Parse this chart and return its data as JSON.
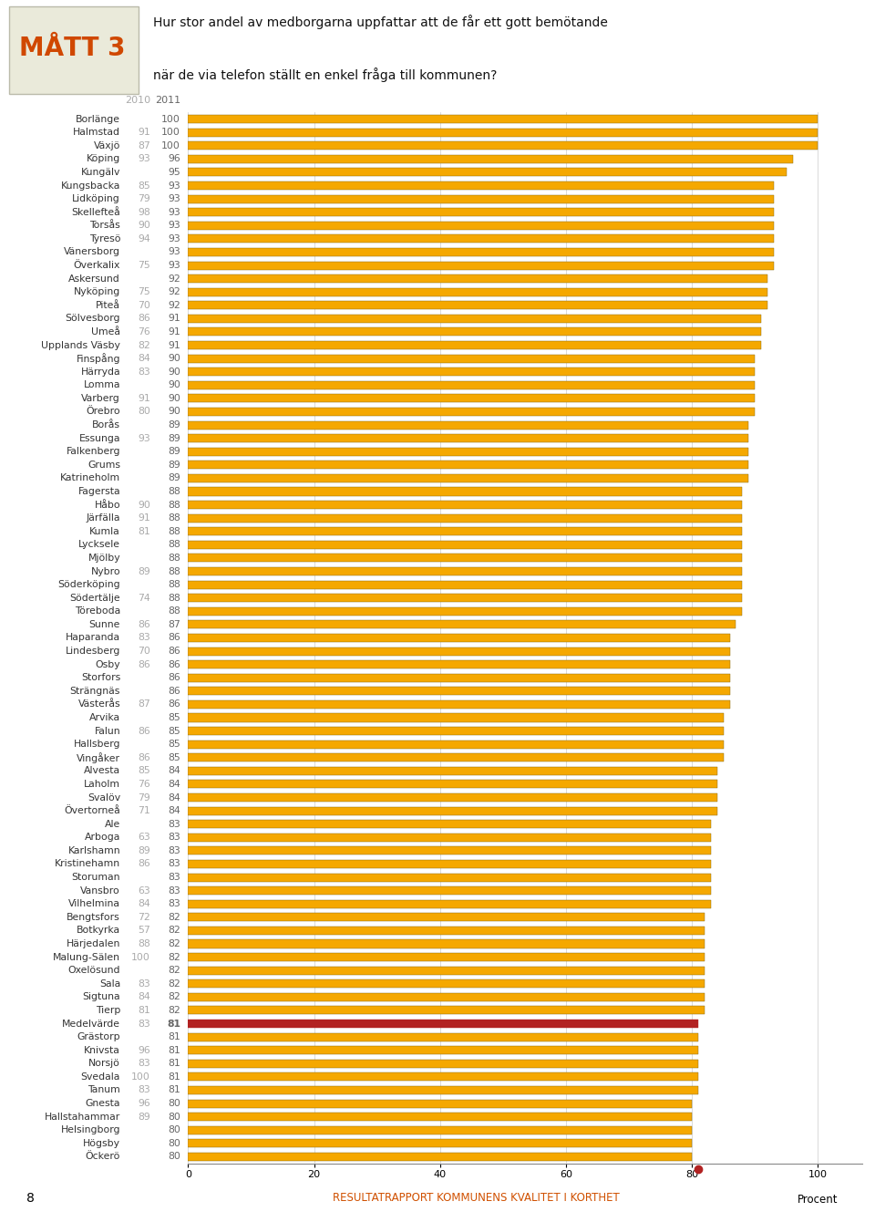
{
  "title_label": "MÅTT 3",
  "question_line1": "Hur stor andel av medborgarna uppfattar att de får ett gott bemötande",
  "question_line2": "när de via telefon ställt en enkel fråga till kommunen?",
  "year_label_2010": "2010",
  "year_label_2011": "2011",
  "xlabel": "Procent",
  "bar_color": "#F5A800",
  "medelvarde_color": "#B22222",
  "municipalities": [
    {
      "name": "Borlänge",
      "v2010": null,
      "v2011": 100
    },
    {
      "name": "Halmstad",
      "v2010": 91,
      "v2011": 100
    },
    {
      "name": "Växjö",
      "v2010": 87,
      "v2011": 100
    },
    {
      "name": "Köping",
      "v2010": 93,
      "v2011": 96
    },
    {
      "name": "Kungälv",
      "v2010": null,
      "v2011": 95
    },
    {
      "name": "Kungsbacka",
      "v2010": 85,
      "v2011": 93
    },
    {
      "name": "Lidköping",
      "v2010": 79,
      "v2011": 93
    },
    {
      "name": "Skellefteå",
      "v2010": 98,
      "v2011": 93
    },
    {
      "name": "Torsås",
      "v2010": 90,
      "v2011": 93
    },
    {
      "name": "Tyresö",
      "v2010": 94,
      "v2011": 93
    },
    {
      "name": "Vänersborg",
      "v2010": null,
      "v2011": 93
    },
    {
      "name": "Överkalix",
      "v2010": 75,
      "v2011": 93
    },
    {
      "name": "Askersund",
      "v2010": null,
      "v2011": 92
    },
    {
      "name": "Nyköping",
      "v2010": 75,
      "v2011": 92
    },
    {
      "name": "Piteå",
      "v2010": 70,
      "v2011": 92
    },
    {
      "name": "Sölvesborg",
      "v2010": 86,
      "v2011": 91
    },
    {
      "name": "Umeå",
      "v2010": 76,
      "v2011": 91
    },
    {
      "name": "Upplands Väsby",
      "v2010": 82,
      "v2011": 91
    },
    {
      "name": "Finspång",
      "v2010": 84,
      "v2011": 90
    },
    {
      "name": "Härryda",
      "v2010": 83,
      "v2011": 90
    },
    {
      "name": "Lomma",
      "v2010": null,
      "v2011": 90
    },
    {
      "name": "Varberg",
      "v2010": 91,
      "v2011": 90
    },
    {
      "name": "Örebro",
      "v2010": 80,
      "v2011": 90
    },
    {
      "name": "Borås",
      "v2010": null,
      "v2011": 89
    },
    {
      "name": "Essunga",
      "v2010": 93,
      "v2011": 89
    },
    {
      "name": "Falkenberg",
      "v2010": null,
      "v2011": 89
    },
    {
      "name": "Grums",
      "v2010": null,
      "v2011": 89
    },
    {
      "name": "Katrineholm",
      "v2010": null,
      "v2011": 89
    },
    {
      "name": "Fagersta",
      "v2010": null,
      "v2011": 88
    },
    {
      "name": "Håbo",
      "v2010": 90,
      "v2011": 88
    },
    {
      "name": "Järfälla",
      "v2010": 91,
      "v2011": 88
    },
    {
      "name": "Kumla",
      "v2010": 81,
      "v2011": 88
    },
    {
      "name": "Lycksele",
      "v2010": null,
      "v2011": 88
    },
    {
      "name": "Mjölby",
      "v2010": null,
      "v2011": 88
    },
    {
      "name": "Nybro",
      "v2010": 89,
      "v2011": 88
    },
    {
      "name": "Söderköping",
      "v2010": null,
      "v2011": 88
    },
    {
      "name": "Södertälje",
      "v2010": 74,
      "v2011": 88
    },
    {
      "name": "Töreboda",
      "v2010": null,
      "v2011": 88
    },
    {
      "name": "Sunne",
      "v2010": 86,
      "v2011": 87
    },
    {
      "name": "Haparanda",
      "v2010": 83,
      "v2011": 86
    },
    {
      "name": "Lindesberg",
      "v2010": 70,
      "v2011": 86
    },
    {
      "name": "Osby",
      "v2010": 86,
      "v2011": 86
    },
    {
      "name": "Storfors",
      "v2010": null,
      "v2011": 86
    },
    {
      "name": "Strängnäs",
      "v2010": null,
      "v2011": 86
    },
    {
      "name": "Västerås",
      "v2010": 87,
      "v2011": 86
    },
    {
      "name": "Arvika",
      "v2010": null,
      "v2011": 85
    },
    {
      "name": "Falun",
      "v2010": 86,
      "v2011": 85
    },
    {
      "name": "Hallsberg",
      "v2010": null,
      "v2011": 85
    },
    {
      "name": "Vingåker",
      "v2010": 86,
      "v2011": 85
    },
    {
      "name": "Alvesta",
      "v2010": 85,
      "v2011": 84
    },
    {
      "name": "Laholm",
      "v2010": 76,
      "v2011": 84
    },
    {
      "name": "Svalöv",
      "v2010": 79,
      "v2011": 84
    },
    {
      "name": "Övertorneå",
      "v2010": 71,
      "v2011": 84
    },
    {
      "name": "Ale",
      "v2010": null,
      "v2011": 83
    },
    {
      "name": "Arboga",
      "v2010": 63,
      "v2011": 83
    },
    {
      "name": "Karlshamn",
      "v2010": 89,
      "v2011": 83
    },
    {
      "name": "Kristinehamn",
      "v2010": 86,
      "v2011": 83
    },
    {
      "name": "Storuman",
      "v2010": null,
      "v2011": 83
    },
    {
      "name": "Vansbro",
      "v2010": 63,
      "v2011": 83
    },
    {
      "name": "Vilhelmina",
      "v2010": 84,
      "v2011": 83
    },
    {
      "name": "Bengtsfors",
      "v2010": 72,
      "v2011": 82
    },
    {
      "name": "Botkyrka",
      "v2010": 57,
      "v2011": 82
    },
    {
      "name": "Härjedalen",
      "v2010": 88,
      "v2011": 82
    },
    {
      "name": "Malung-Sälen",
      "v2010": 100,
      "v2011": 82
    },
    {
      "name": "Oxelösund",
      "v2010": null,
      "v2011": 82
    },
    {
      "name": "Sala",
      "v2010": 83,
      "v2011": 82
    },
    {
      "name": "Sigtuna",
      "v2010": 84,
      "v2011": 82
    },
    {
      "name": "Tierp",
      "v2010": 81,
      "v2011": 82
    },
    {
      "name": "Medelvärde",
      "v2010": 83,
      "v2011": 81,
      "special": true
    },
    {
      "name": "Grästorp",
      "v2010": null,
      "v2011": 81
    },
    {
      "name": "Knivsta",
      "v2010": 96,
      "v2011": 81
    },
    {
      "name": "Norsjö",
      "v2010": 83,
      "v2011": 81
    },
    {
      "name": "Svedala",
      "v2010": 100,
      "v2011": 81
    },
    {
      "name": "Tanum",
      "v2010": 83,
      "v2011": 81
    },
    {
      "name": "Gnesta",
      "v2010": 96,
      "v2011": 80
    },
    {
      "name": "Hallstahammar",
      "v2010": 89,
      "v2011": 80
    },
    {
      "name": "Helsingborg",
      "v2010": null,
      "v2011": 80
    },
    {
      "name": "Högsby",
      "v2010": null,
      "v2011": 80
    },
    {
      "name": "Öckerö",
      "v2010": null,
      "v2011": 80
    }
  ],
  "footer_text": "RESULTATRAPPORT KOMMUNENS KVALITET I KORTHET",
  "page_number": "8",
  "header_box_color": "#EAEADA",
  "header_box_edge": "#BBBBAA",
  "title_color": "#D04800",
  "footer_color": "#D05000",
  "num_color_2010": "#AAAAAA",
  "num_color_2011": "#666666",
  "name_color": "#333333",
  "bar_edge_color": "#7A6000",
  "grid_color": "#CCCCCC"
}
